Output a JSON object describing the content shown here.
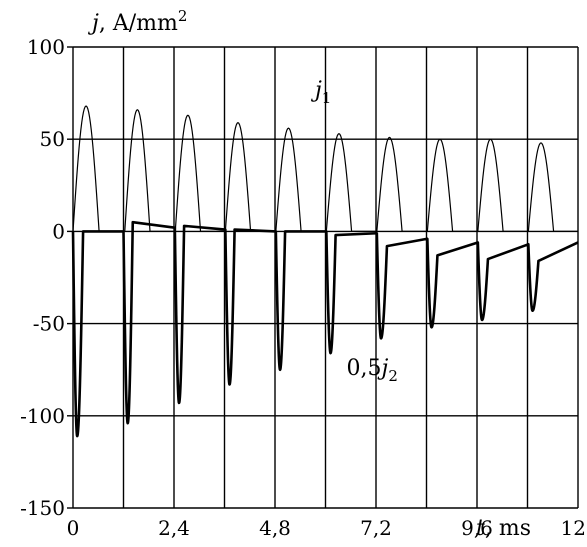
{
  "chart_data": {
    "type": "line",
    "ylabel": {
      "symbol": "j",
      "unit": ", A/mm",
      "unit_exp": "2"
    },
    "xlabel": {
      "symbol": "t",
      "unit": ", ms"
    },
    "xlim": [
      0,
      12
    ],
    "ylim": [
      -150,
      100
    ],
    "x_ticks": [
      0,
      2.4,
      4.8,
      7.2,
      9.6,
      12
    ],
    "x_tick_labels": [
      "0",
      "2,4",
      "4,8",
      "7,2",
      "9,6",
      "12"
    ],
    "y_ticks": [
      100,
      50,
      0,
      -50,
      -100,
      -150
    ],
    "y_tick_labels": [
      "100",
      "50",
      "0",
      "-50",
      "-100",
      "-150"
    ],
    "x_grid": [
      0,
      1.2,
      2.4,
      3.6,
      4.8,
      6.0,
      7.2,
      8.4,
      9.6,
      10.8,
      12
    ],
    "y_grid": [
      100,
      50,
      0,
      -50,
      -100,
      -150
    ],
    "series": [
      {
        "name_symbol": "j",
        "name_sub": "1",
        "label_pos": [
          5.75,
          73
        ],
        "color": "#000000",
        "width": 1.2,
        "peaks": [
          {
            "start": 0.0,
            "end": 0.62,
            "peak": 68
          },
          {
            "start": 1.23,
            "end": 1.83,
            "peak": 66
          },
          {
            "start": 2.43,
            "end": 3.03,
            "peak": 63
          },
          {
            "start": 3.62,
            "end": 4.22,
            "peak": 59
          },
          {
            "start": 4.82,
            "end": 5.42,
            "peak": 56
          },
          {
            "start": 6.02,
            "end": 6.62,
            "peak": 53
          },
          {
            "start": 7.22,
            "end": 7.82,
            "peak": 51
          },
          {
            "start": 8.42,
            "end": 9.02,
            "peak": 50
          },
          {
            "start": 9.62,
            "end": 10.22,
            "peak": 50
          },
          {
            "start": 10.82,
            "end": 11.42,
            "peak": 48
          }
        ]
      },
      {
        "name_prefix": "0,5",
        "name_symbol": "j",
        "name_sub": "2",
        "label_pos": [
          6.5,
          -78
        ],
        "color": "#000000",
        "width": 2.6,
        "dips": [
          {
            "start": 0.0,
            "min_x": 0.1,
            "min": -111,
            "end": 0.24,
            "after": 0
          },
          {
            "start": 1.2,
            "min_x": 1.3,
            "min": -104,
            "end": 1.42,
            "after": 5
          },
          {
            "start": 2.42,
            "min_x": 2.52,
            "min": -93,
            "end": 2.64,
            "after": 3
          },
          {
            "start": 3.62,
            "min_x": 3.72,
            "min": -83,
            "end": 3.84,
            "after": 1
          },
          {
            "start": 4.82,
            "min_x": 4.92,
            "min": -75,
            "end": 5.04,
            "after": 0
          },
          {
            "start": 6.02,
            "min_x": 6.12,
            "min": -66,
            "end": 6.24,
            "after": -2
          },
          {
            "start": 7.22,
            "min_x": 7.32,
            "min": -58,
            "end": 7.46,
            "after": -8
          },
          {
            "start": 8.42,
            "min_x": 8.52,
            "min": -52,
            "end": 8.66,
            "after": -13
          },
          {
            "start": 9.62,
            "min_x": 9.72,
            "min": -48,
            "end": 9.86,
            "after": -15
          },
          {
            "start": 10.82,
            "min_x": 10.92,
            "min": -43,
            "end": 11.06,
            "after": -16
          }
        ],
        "baseline_segments": [
          [
            0.24,
            0,
            1.2,
            0
          ],
          [
            1.42,
            5,
            2.42,
            2
          ],
          [
            2.64,
            3,
            3.62,
            1
          ],
          [
            3.84,
            1,
            4.82,
            0
          ],
          [
            5.04,
            0,
            6.02,
            0
          ],
          [
            6.24,
            -2,
            7.22,
            -1
          ],
          [
            7.46,
            -8,
            8.42,
            -4
          ],
          [
            8.66,
            -13,
            9.62,
            -6
          ],
          [
            9.86,
            -15,
            10.82,
            -7
          ],
          [
            11.06,
            -16,
            12.0,
            -6
          ]
        ]
      }
    ]
  }
}
